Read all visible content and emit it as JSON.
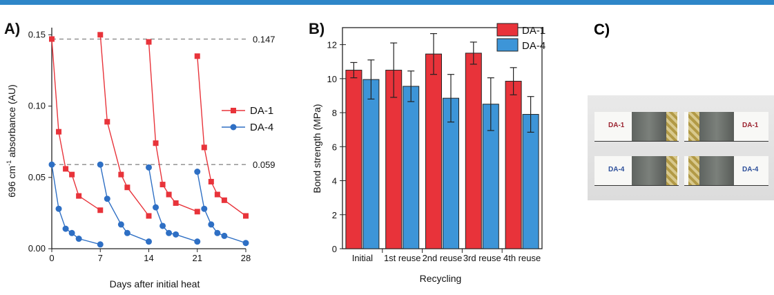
{
  "chart_data": [
    {
      "type": "scatter",
      "panel_label": "A)",
      "xlabel": "Days after initial heat",
      "ylabel_pre": "696 cm",
      "ylabel_sup": "-1",
      "ylabel_post": " absorbance (AU)",
      "xlim": [
        0,
        28
      ],
      "ylim": [
        0,
        0.155
      ],
      "x_ticks": [
        0,
        7,
        14,
        21,
        28
      ],
      "y_ticks": [
        "0.00",
        "0.05",
        "0.10",
        "0.15"
      ],
      "reference_lines": [
        {
          "y": 0.147,
          "label": "0.147"
        },
        {
          "y": 0.059,
          "label": "0.059"
        }
      ],
      "legend_position": "right",
      "series": [
        {
          "name": "DA-1",
          "color": "#e8333a",
          "marker": "square",
          "segments": [
            [
              [
                0,
                0.147
              ],
              [
                1,
                0.082
              ],
              [
                2,
                0.056
              ],
              [
                2.9,
                0.052
              ],
              [
                3.9,
                0.037
              ],
              [
                7,
                0.027
              ]
            ],
            [
              [
                7,
                0.15
              ],
              [
                8,
                0.089
              ],
              [
                10,
                0.052
              ],
              [
                10.9,
                0.043
              ],
              [
                14,
                0.023
              ]
            ],
            [
              [
                14,
                0.145
              ],
              [
                15,
                0.074
              ],
              [
                16,
                0.045
              ],
              [
                16.9,
                0.038
              ],
              [
                17.9,
                0.032
              ],
              [
                21,
                0.026
              ]
            ],
            [
              [
                21,
                0.135
              ],
              [
                22,
                0.071
              ],
              [
                23,
                0.047
              ],
              [
                23.9,
                0.038
              ],
              [
                24.9,
                0.034
              ],
              [
                28,
                0.023
              ]
            ]
          ]
        },
        {
          "name": "DA-4",
          "color": "#2e6fc4",
          "marker": "circle",
          "segments": [
            [
              [
                0,
                0.059
              ],
              [
                1,
                0.028
              ],
              [
                2,
                0.014
              ],
              [
                2.9,
                0.011
              ],
              [
                3.9,
                0.007
              ],
              [
                7,
                0.003
              ]
            ],
            [
              [
                7,
                0.059
              ],
              [
                8,
                0.035
              ],
              [
                10,
                0.017
              ],
              [
                10.9,
                0.011
              ],
              [
                14,
                0.005
              ]
            ],
            [
              [
                14,
                0.057
              ],
              [
                15,
                0.029
              ],
              [
                16,
                0.016
              ],
              [
                16.9,
                0.011
              ],
              [
                17.9,
                0.01
              ],
              [
                21,
                0.005
              ]
            ],
            [
              [
                21,
                0.054
              ],
              [
                22,
                0.028
              ],
              [
                23,
                0.017
              ],
              [
                23.9,
                0.011
              ],
              [
                24.9,
                0.009
              ],
              [
                28,
                0.004
              ]
            ]
          ]
        }
      ]
    },
    {
      "type": "bar",
      "panel_label": "B)",
      "xlabel": "Recycling",
      "ylabel": "Bond strength (MPa)",
      "ylim": [
        0,
        13
      ],
      "y_ticks": [
        0,
        2,
        4,
        6,
        8,
        10,
        12
      ],
      "categories": [
        "Initial",
        "1st reuse",
        "2nd reuse",
        "3rd reuse",
        "4th reuse"
      ],
      "legend_position": "top-right",
      "series": [
        {
          "name": "DA-1",
          "color": "#e8333a",
          "values": [
            10.5,
            10.5,
            11.45,
            11.5,
            9.85
          ],
          "errors": [
            0.45,
            1.6,
            1.2,
            0.65,
            0.8
          ]
        },
        {
          "name": "DA-4",
          "color": "#3d95d8",
          "values": [
            9.95,
            9.55,
            8.85,
            8.5,
            7.9
          ],
          "errors": [
            1.15,
            0.9,
            1.4,
            1.55,
            1.05
          ]
        }
      ]
    }
  ],
  "panel_c": {
    "panel_label": "C)",
    "strip_labels": [
      "DA-1",
      "DA-1",
      "DA-4",
      "DA-4"
    ],
    "label_colors": [
      "#9b2330",
      "#9b2330",
      "#2d4f9a",
      "#2d4f9a"
    ]
  }
}
